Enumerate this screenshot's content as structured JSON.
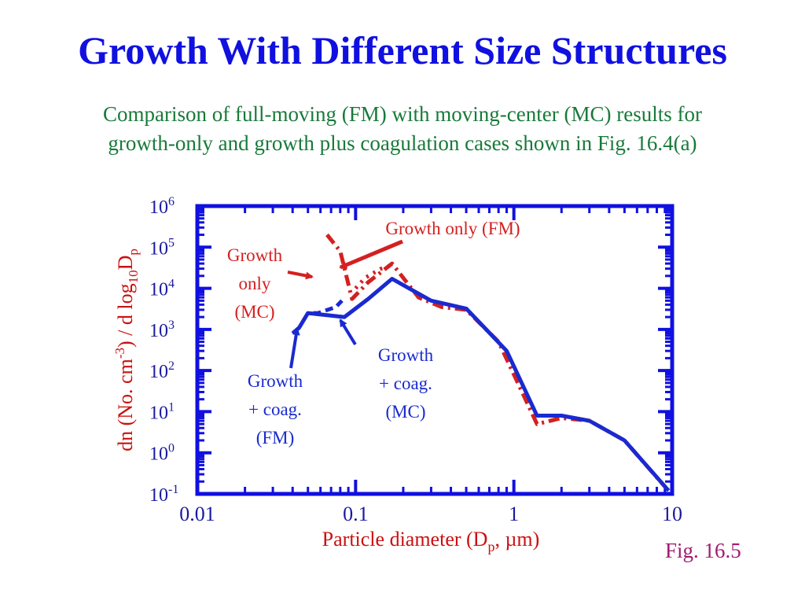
{
  "slide": {
    "title": "Growth With Different Size Structures",
    "subtitle_line1": "Comparison of full-moving (FM) with moving-center (MC) results for",
    "subtitle_line2": "growth-only and growth plus coagulation cases shown in Fig. 16.4(a)",
    "figure_label": "Fig. 16.5"
  },
  "colors": {
    "title": "#1010e0",
    "subtitle": "#187a3a",
    "axes": "#1010e0",
    "growth_only": "#d42020",
    "growth_coag": "#1a2ad0",
    "axis_labels": "#cc1010",
    "figure_label": "#a01c70"
  },
  "chart_data": {
    "type": "line",
    "x_scale": "log",
    "y_scale": "log",
    "xlim": [
      0.01,
      10
    ],
    "ylim": [
      0.1,
      1000000
    ],
    "xlabel": {
      "main": "Particle diameter (D",
      "sub": "p",
      "tail": ", µm)"
    },
    "ylabel": {
      "p1": "dn (No.  cm",
      "sup": "-3",
      "p2": ") / d log",
      "sub1": "10",
      "p3": "D",
      "sub2": "p"
    },
    "x_ticks": [
      {
        "value": 0.01,
        "label": "0.01"
      },
      {
        "value": 0.1,
        "label": "0.1"
      },
      {
        "value": 1,
        "label": "1"
      },
      {
        "value": 10,
        "label": "10"
      }
    ],
    "y_ticks": [
      {
        "value": 1000000,
        "base": "10",
        "exp": "6"
      },
      {
        "value": 100000,
        "base": "10",
        "exp": "5"
      },
      {
        "value": 10000,
        "base": "10",
        "exp": "4"
      },
      {
        "value": 1000,
        "base": "10",
        "exp": "3"
      },
      {
        "value": 100,
        "base": "10",
        "exp": "2"
      },
      {
        "value": 10,
        "base": "10",
        "exp": "1"
      },
      {
        "value": 1,
        "base": "10",
        "exp": "0"
      },
      {
        "value": 0.1,
        "base": "10",
        "exp": "-1"
      }
    ],
    "series": [
      {
        "style": "dash-dot",
        "color": "#d42020",
        "points": [
          [
            0.066,
            200000
          ],
          [
            0.08,
            80000
          ],
          [
            0.095,
            5500
          ],
          [
            0.12,
            14000
          ],
          [
            0.17,
            40000
          ],
          [
            0.25,
            6000
          ],
          [
            0.35,
            3500
          ],
          [
            0.5,
            3000
          ],
          [
            0.8,
            500
          ],
          [
            1.0,
            80
          ],
          [
            1.4,
            5
          ],
          [
            2.0,
            7
          ],
          [
            3.0,
            6
          ],
          [
            5.0,
            2
          ],
          [
            9.0,
            0.15
          ]
        ]
      },
      {
        "style": "dotted",
        "color": "#d42020",
        "points": [
          [
            0.1,
            10000
          ],
          [
            0.115,
            18000
          ],
          [
            0.145,
            30000
          ],
          [
            0.175,
            38000
          ]
        ]
      },
      {
        "style": "dashed",
        "color": "#1a2ad0",
        "points": [
          [
            0.054,
            2500
          ],
          [
            0.058,
            2500
          ],
          [
            0.075,
            3500
          ],
          [
            0.082,
            5000
          ]
        ]
      },
      {
        "style": "solid",
        "color": "#1a2ad0",
        "points": [
          [
            0.04,
            800
          ],
          [
            0.044,
            1100
          ],
          [
            0.05,
            2500
          ],
          [
            0.085,
            2000
          ],
          [
            0.12,
            5500
          ],
          [
            0.17,
            17000
          ],
          [
            0.3,
            5000
          ],
          [
            0.5,
            3200
          ],
          [
            0.9,
            300
          ],
          [
            1.4,
            8
          ],
          [
            2.0,
            8
          ],
          [
            3.0,
            6
          ],
          [
            5.0,
            2
          ],
          [
            9.5,
            0.12
          ]
        ]
      }
    ],
    "annotations": [
      {
        "text": "Growth only (FM)",
        "color": "#d42020"
      },
      {
        "text_lines": [
          "Growth",
          "only",
          "(MC)"
        ],
        "color": "#d42020"
      },
      {
        "text_lines": [
          "Growth",
          "+ coag.",
          "(FM)"
        ],
        "color": "#1a2ad0"
      },
      {
        "text_lines": [
          "Growth",
          "+ coag.",
          "(MC)"
        ],
        "color": "#1a2ad0"
      }
    ]
  }
}
